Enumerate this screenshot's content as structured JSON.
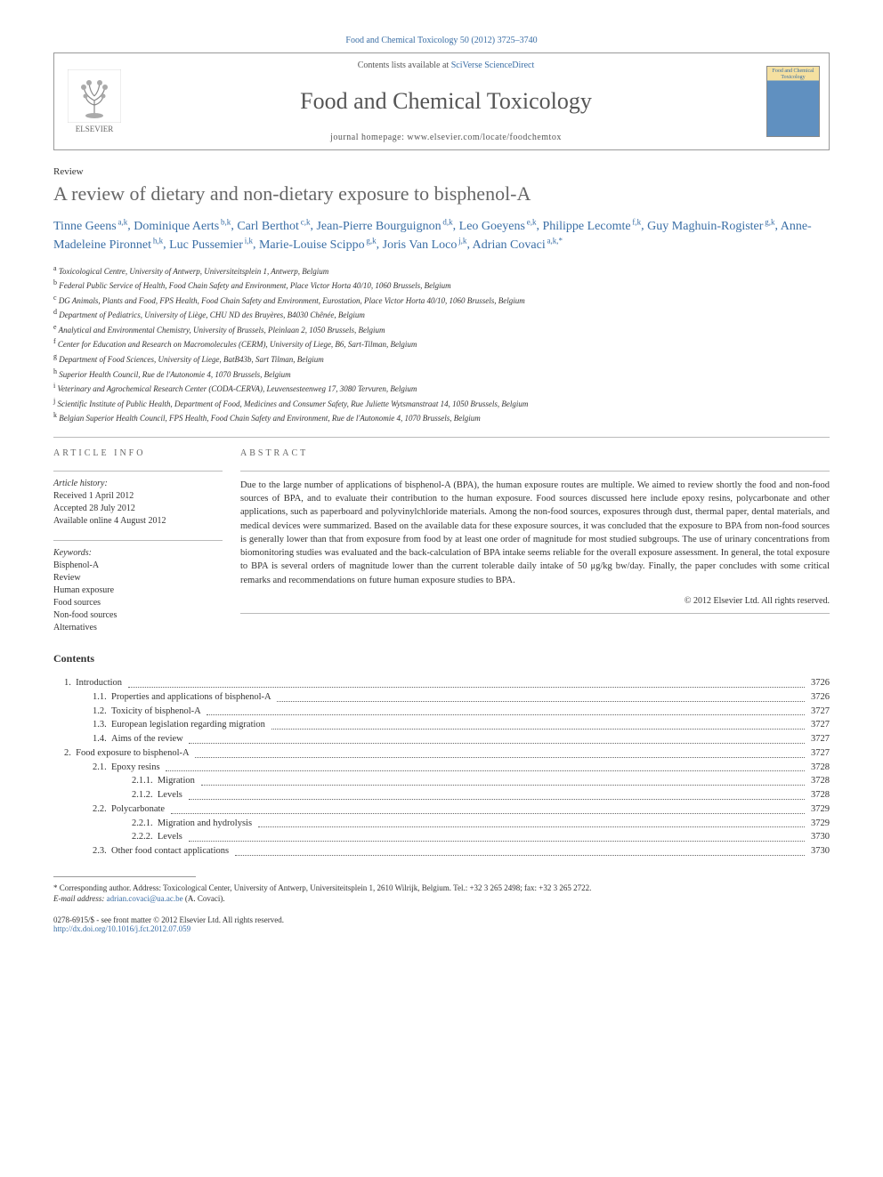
{
  "citation": "Food and Chemical Toxicology 50 (2012) 3725–3740",
  "header": {
    "contents_prefix": "Contents lists available at ",
    "contents_link": "SciVerse ScienceDirect",
    "journal_name": "Food and Chemical Toxicology",
    "homepage": "journal homepage: www.elsevier.com/locate/foodchemtox",
    "publisher": "ELSEVIER",
    "cover_text": "Food and Chemical Toxicology"
  },
  "article_type": "Review",
  "title": "A review of dietary and non-dietary exposure to bisphenol-A",
  "authors": [
    {
      "name": "Tinne Geens",
      "aff": "a,k"
    },
    {
      "name": "Dominique Aerts",
      "aff": "b,k"
    },
    {
      "name": "Carl Berthot",
      "aff": "c,k"
    },
    {
      "name": "Jean-Pierre Bourguignon",
      "aff": "d,k"
    },
    {
      "name": "Leo Goeyens",
      "aff": "e,k"
    },
    {
      "name": "Philippe Lecomte",
      "aff": "f,k"
    },
    {
      "name": "Guy Maghuin-Rogister",
      "aff": "g,k"
    },
    {
      "name": "Anne-Madeleine Pironnet",
      "aff": "h,k"
    },
    {
      "name": "Luc Pussemier",
      "aff": "i,k"
    },
    {
      "name": "Marie-Louise Scippo",
      "aff": "g,k"
    },
    {
      "name": "Joris Van Loco",
      "aff": "j,k"
    },
    {
      "name": "Adrian Covaci",
      "aff": "a,k,*"
    }
  ],
  "affiliations": [
    {
      "sup": "a",
      "text": "Toxicological Centre, University of Antwerp, Universiteitsplein 1, Antwerp, Belgium"
    },
    {
      "sup": "b",
      "text": "Federal Public Service of Health, Food Chain Safety and Environment, Place Victor Horta 40/10, 1060 Brussels, Belgium"
    },
    {
      "sup": "c",
      "text": "DG Animals, Plants and Food, FPS Health, Food Chain Safety and Environment, Eurostation, Place Victor Horta 40/10, 1060 Brussels, Belgium"
    },
    {
      "sup": "d",
      "text": "Department of Pediatrics, University of Liège, CHU ND des Bruyères, B4030 Chênée, Belgium"
    },
    {
      "sup": "e",
      "text": "Analytical and Environmental Chemistry, University of Brussels, Pleinlaan 2, 1050 Brussels, Belgium"
    },
    {
      "sup": "f",
      "text": "Center for Education and Research on Macromolecules (CERM), University of Liege, B6, Sart-Tilman, Belgium"
    },
    {
      "sup": "g",
      "text": "Department of Food Sciences, University of Liege, BatB43b, Sart Tilman, Belgium"
    },
    {
      "sup": "h",
      "text": "Superior Health Council, Rue de l'Autonomie 4, 1070 Brussels, Belgium"
    },
    {
      "sup": "i",
      "text": "Veterinary and Agrochemical Research Center (CODA-CERVA), Leuvensesteenweg 17, 3080 Tervuren, Belgium"
    },
    {
      "sup": "j",
      "text": "Scientific Institute of Public Health, Department of Food, Medicines and Consumer Safety, Rue Juliette Wytsmanstraat 14, 1050 Brussels, Belgium"
    },
    {
      "sup": "k",
      "text": "Belgian Superior Health Council, FPS Health, Food Chain Safety and Environment, Rue de l'Autonomie 4, 1070 Brussels, Belgium"
    }
  ],
  "info_headers": {
    "article_info": "ARTICLE INFO",
    "abstract": "ABSTRACT",
    "history": "Article history:",
    "keywords": "Keywords:"
  },
  "history": [
    "Received 1 April 2012",
    "Accepted 28 July 2012",
    "Available online 4 August 2012"
  ],
  "keywords": [
    "Bisphenol-A",
    "Review",
    "Human exposure",
    "Food sources",
    "Non-food sources",
    "Alternatives"
  ],
  "abstract": "Due to the large number of applications of bisphenol-A (BPA), the human exposure routes are multiple. We aimed to review shortly the food and non-food sources of BPA, and to evaluate their contribution to the human exposure. Food sources discussed here include epoxy resins, polycarbonate and other applications, such as paperboard and polyvinylchloride materials. Among the non-food sources, exposures through dust, thermal paper, dental materials, and medical devices were summarized. Based on the available data for these exposure sources, it was concluded that the exposure to BPA from non-food sources is generally lower than that from exposure from food by at least one order of magnitude for most studied subgroups. The use of urinary concentrations from biomonitoring studies was evaluated and the back-calculation of BPA intake seems reliable for the overall exposure assessment. In general, the total exposure to BPA is several orders of magnitude lower than the current tolerable daily intake of 50 μg/kg bw/day. Finally, the paper concludes with some critical remarks and recommendations on future human exposure studies to BPA.",
  "copyright": "© 2012 Elsevier Ltd. All rights reserved.",
  "contents_label": "Contents",
  "toc": [
    {
      "indent": 0,
      "num": "1.",
      "label": "Introduction",
      "page": "3726"
    },
    {
      "indent": 1,
      "num": "1.1.",
      "label": "Properties and applications of bisphenol-A",
      "page": "3726"
    },
    {
      "indent": 1,
      "num": "1.2.",
      "label": "Toxicity of bisphenol-A",
      "page": "3727"
    },
    {
      "indent": 1,
      "num": "1.3.",
      "label": "European legislation regarding migration",
      "page": "3727"
    },
    {
      "indent": 1,
      "num": "1.4.",
      "label": "Aims of the review",
      "page": "3727"
    },
    {
      "indent": 0,
      "num": "2.",
      "label": "Food exposure to bisphenol-A",
      "page": "3727"
    },
    {
      "indent": 1,
      "num": "2.1.",
      "label": "Epoxy resins",
      "page": "3728"
    },
    {
      "indent": 2,
      "num": "2.1.1.",
      "label": "Migration",
      "page": "3728"
    },
    {
      "indent": 2,
      "num": "2.1.2.",
      "label": "Levels",
      "page": "3728"
    },
    {
      "indent": 1,
      "num": "2.2.",
      "label": "Polycarbonate",
      "page": "3729"
    },
    {
      "indent": 2,
      "num": "2.2.1.",
      "label": "Migration and hydrolysis",
      "page": "3729"
    },
    {
      "indent": 2,
      "num": "2.2.2.",
      "label": "Levels",
      "page": "3730"
    },
    {
      "indent": 1,
      "num": "2.3.",
      "label": "Other food contact applications",
      "page": "3730"
    }
  ],
  "footnotes": {
    "corresponding": "* Corresponding author. Address: Toxicological Center, University of Antwerp, Universiteitsplein 1, 2610 Wilrijk, Belgium. Tel.: +32 3 265 2498; fax: +32 3 265 2722.",
    "email_label": "E-mail address:",
    "email": "adrian.covaci@ua.ac.be",
    "email_who": "(A. Covaci)."
  },
  "bottom": {
    "line1": "0278-6915/$ - see front matter © 2012 Elsevier Ltd. All rights reserved.",
    "doi": "http://dx.doi.org/10.1016/j.fct.2012.07.059"
  }
}
